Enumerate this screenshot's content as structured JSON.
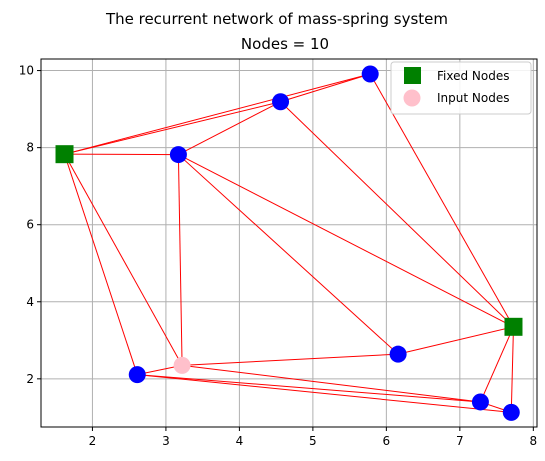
{
  "chart_data": {
    "type": "scatter",
    "title": "The recurrent network of mass-spring system",
    "subtitle": "Nodes = 10",
    "xlabel": "",
    "ylabel": "",
    "xlim": [
      1.3,
      8.05
    ],
    "ylim": [
      0.75,
      10.3
    ],
    "xticks": [
      2,
      3,
      4,
      5,
      6,
      7,
      8
    ],
    "yticks": [
      2,
      4,
      6,
      8,
      10
    ],
    "grid": true,
    "legend_position": "top-right",
    "colors": {
      "edge": "#ff0000",
      "node": "#0000ff",
      "fixed": "#008000",
      "input": "#ffc0cb",
      "grid": "#b0b0b0"
    },
    "nodes": [
      {
        "x": 1.62,
        "y": 7.83,
        "kind": "fixed"
      },
      {
        "x": 7.73,
        "y": 3.35,
        "kind": "fixed"
      },
      {
        "x": 3.22,
        "y": 2.35,
        "kind": "input"
      },
      {
        "x": 5.78,
        "y": 9.91,
        "kind": "node"
      },
      {
        "x": 4.56,
        "y": 9.19,
        "kind": "node"
      },
      {
        "x": 3.17,
        "y": 7.82,
        "kind": "node"
      },
      {
        "x": 6.16,
        "y": 2.64,
        "kind": "node"
      },
      {
        "x": 2.61,
        "y": 2.11,
        "kind": "node"
      },
      {
        "x": 7.28,
        "y": 1.4,
        "kind": "node"
      },
      {
        "x": 7.7,
        "y": 1.13,
        "kind": "node"
      }
    ],
    "edges": [
      [
        0,
        3
      ],
      [
        0,
        4
      ],
      [
        0,
        5
      ],
      [
        0,
        7
      ],
      [
        0,
        2
      ],
      [
        5,
        4
      ],
      [
        5,
        2
      ],
      [
        5,
        6
      ],
      [
        5,
        1
      ],
      [
        4,
        3
      ],
      [
        4,
        1
      ],
      [
        3,
        1
      ],
      [
        1,
        6
      ],
      [
        1,
        8
      ],
      [
        1,
        9
      ],
      [
        2,
        6
      ],
      [
        2,
        7
      ],
      [
        2,
        8
      ],
      [
        7,
        8
      ],
      [
        7,
        9
      ],
      [
        8,
        9
      ]
    ],
    "legend": [
      {
        "label": "Fixed Nodes",
        "kind": "fixed"
      },
      {
        "label": "Input Nodes",
        "kind": "input"
      }
    ]
  }
}
